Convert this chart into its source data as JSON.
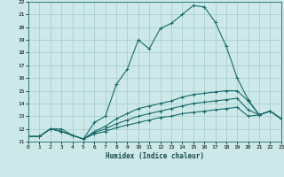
{
  "xlabel": "Humidex (Indice chaleur)",
  "ylabel": "",
  "bg_color": "#cce8e8",
  "grid_color": "#aacfcf",
  "line_color": "#1a6b6b",
  "xlim": [
    0,
    23
  ],
  "ylim": [
    11,
    22
  ],
  "xticks": [
    0,
    1,
    2,
    3,
    4,
    5,
    6,
    7,
    8,
    9,
    10,
    11,
    12,
    13,
    14,
    15,
    16,
    17,
    18,
    19,
    20,
    21,
    22,
    23
  ],
  "yticks": [
    11,
    12,
    13,
    14,
    15,
    16,
    17,
    18,
    19,
    20,
    21,
    22
  ],
  "lines": [
    {
      "x": [
        0,
        1,
        2,
        3,
        4,
        5,
        6,
        7,
        8,
        9,
        10,
        11,
        12,
        13,
        14,
        15,
        16,
        17,
        18,
        19,
        20,
        21,
        22,
        23
      ],
      "y": [
        11.4,
        11.4,
        12.0,
        12.0,
        11.5,
        11.2,
        12.5,
        13.0,
        15.5,
        16.7,
        19.0,
        18.3,
        19.9,
        20.3,
        21.0,
        21.7,
        21.6,
        20.4,
        18.5,
        16.0,
        14.3,
        13.1,
        13.4,
        12.8
      ]
    },
    {
      "x": [
        0,
        1,
        2,
        3,
        4,
        5,
        6,
        7,
        8,
        9,
        10,
        11,
        12,
        13,
        14,
        15,
        16,
        17,
        18,
        19,
        20,
        21,
        22,
        23
      ],
      "y": [
        11.4,
        11.4,
        12.0,
        11.8,
        11.5,
        11.2,
        11.8,
        12.2,
        12.8,
        13.2,
        13.6,
        13.8,
        14.0,
        14.2,
        14.5,
        14.7,
        14.8,
        14.9,
        15.0,
        15.0,
        14.2,
        13.1,
        13.4,
        12.8
      ]
    },
    {
      "x": [
        0,
        1,
        2,
        3,
        4,
        5,
        6,
        7,
        8,
        9,
        10,
        11,
        12,
        13,
        14,
        15,
        16,
        17,
        18,
        19,
        20,
        21,
        22,
        23
      ],
      "y": [
        11.4,
        11.4,
        12.0,
        11.8,
        11.5,
        11.2,
        11.7,
        12.0,
        12.4,
        12.7,
        13.0,
        13.2,
        13.4,
        13.6,
        13.8,
        14.0,
        14.1,
        14.2,
        14.3,
        14.4,
        13.5,
        13.1,
        13.4,
        12.8
      ]
    },
    {
      "x": [
        0,
        1,
        2,
        3,
        4,
        5,
        6,
        7,
        8,
        9,
        10,
        11,
        12,
        13,
        14,
        15,
        16,
        17,
        18,
        19,
        20,
        21,
        22,
        23
      ],
      "y": [
        11.4,
        11.4,
        12.0,
        11.8,
        11.5,
        11.2,
        11.6,
        11.8,
        12.1,
        12.3,
        12.5,
        12.7,
        12.9,
        13.0,
        13.2,
        13.3,
        13.4,
        13.5,
        13.6,
        13.7,
        13.0,
        13.1,
        13.4,
        12.8
      ]
    }
  ]
}
